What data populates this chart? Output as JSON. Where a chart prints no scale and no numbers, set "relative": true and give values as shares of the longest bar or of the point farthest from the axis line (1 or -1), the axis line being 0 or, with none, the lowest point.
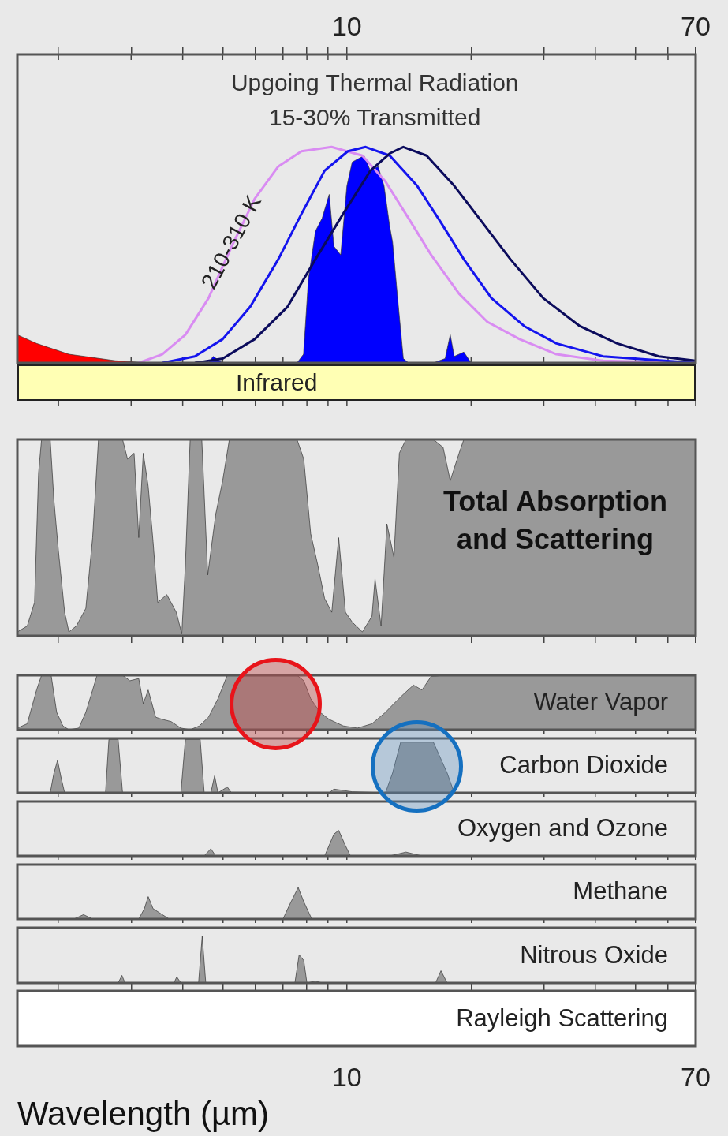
{
  "chart_data": [
    {
      "type": "line",
      "title": "Upgoing Thermal Radiation",
      "subtitle": "15-30% Transmitted",
      "relative": true,
      "log": "x",
      "tick_labels": "x",
      "xlim": [
        1.59,
        70
      ],
      "xticks": [
        {
          "value": 2,
          "label": null
        },
        {
          "value": 3,
          "label": null
        },
        {
          "value": 4,
          "label": null
        },
        {
          "value": 5,
          "label": null
        },
        {
          "value": 6,
          "label": null
        },
        {
          "value": 7,
          "label": null
        },
        {
          "value": 8,
          "label": null
        },
        {
          "value": 9,
          "label": null
        },
        10,
        {
          "value": 20,
          "label": null
        },
        {
          "value": 30,
          "label": null
        },
        {
          "value": 40,
          "label": null
        },
        {
          "value": 50,
          "label": null
        },
        {
          "value": 60,
          "label": null
        },
        70
      ],
      "annotations": [
        "210-310 K",
        "Infrared"
      ],
      "series": [
        {
          "type": "area",
          "color": "#ff0000",
          "x": [
            1.59,
            1.77,
            2.12,
            2.75,
            3.3
          ],
          "values": [
            0.13,
            0.09,
            0.04,
            0.01,
            0
          ]
        },
        {
          "type": "area",
          "color": "#0000ff",
          "x": [
            3.13,
            4.62,
            4.74,
            5.0,
            7.57,
            7.85,
            8.07,
            8.39,
            8.71,
            9.06,
            9.3,
            9.66,
            10,
            10.3,
            11.0,
            11.4,
            11.9,
            12.3,
            12.7,
            12.9,
            13.3,
            13.7,
            14.1,
            16.2,
            17.3,
            17.8,
            18.2,
            19.2,
            20.0,
            70
          ],
          "values": [
            0,
            0,
            0.03,
            0,
            0,
            0.04,
            0.39,
            0.61,
            0.67,
            0.78,
            0.54,
            0.5,
            0.82,
            0.93,
            0.96,
            0.89,
            0.91,
            0.82,
            0.63,
            0.56,
            0.28,
            0.02,
            0,
            0,
            0.02,
            0.13,
            0.03,
            0.05,
            0,
            0
          ]
        },
        {
          "type": "line",
          "color": "#d98cf2",
          "x": [
            3.13,
            3.57,
            4.06,
            4.62,
            5.26,
            5.98,
            6.82,
            7.76,
            9.18,
            10.9,
            12.4,
            14.1,
            16.0,
            18.7,
            21.9,
            26.2,
            32.2,
            41.8,
            70
          ],
          "values": [
            0,
            0.04,
            0.13,
            0.3,
            0.54,
            0.76,
            0.91,
            0.98,
            1,
            0.96,
            0.84,
            0.67,
            0.5,
            0.32,
            0.19,
            0.11,
            0.04,
            0.01,
            0
          ]
        },
        {
          "type": "line",
          "color": "#1414ee",
          "x": [
            3.57,
            4.28,
            5.0,
            5.83,
            6.82,
            7.76,
            8.83,
            10.05,
            11.1,
            12.7,
            14.8,
            16.9,
            19.2,
            22.4,
            26.9,
            32.2,
            41.8,
            70
          ],
          "values": [
            0,
            0.03,
            0.11,
            0.26,
            0.48,
            0.69,
            0.89,
            0.98,
            1,
            0.96,
            0.82,
            0.65,
            0.48,
            0.3,
            0.17,
            0.09,
            0.03,
            0
          ]
        },
        {
          "type": "line",
          "color": "#0b0b5c",
          "x": [
            4.28,
            5.0,
            5.98,
            7.18,
            8.39,
            9.79,
            11.4,
            12.7,
            13.7,
            15.6,
            18.2,
            21.3,
            24.9,
            29.9,
            36.7,
            45.2,
            57.0,
            70
          ],
          "values": [
            0,
            0.02,
            0.11,
            0.26,
            0.48,
            0.69,
            0.89,
            0.97,
            1,
            0.96,
            0.82,
            0.65,
            0.48,
            0.3,
            0.17,
            0.09,
            0.03,
            0.01
          ]
        }
      ]
    },
    {
      "type": "area",
      "title": "Total Absorption and Scattering",
      "relative": true,
      "log": "x",
      "tick_labels": false,
      "xlim": [
        1.59,
        70
      ],
      "xticks": [
        2,
        3,
        4,
        5,
        6,
        7,
        8,
        9,
        10,
        20,
        30,
        40,
        50,
        60,
        70
      ],
      "color": "#999999",
      "x": [
        1.59,
        1.68,
        1.75,
        1.79,
        1.82,
        1.91,
        1.95,
        2.0,
        2.07,
        2.12,
        2.21,
        2.33,
        2.42,
        2.5,
        2.86,
        2.94,
        3.05,
        3.13,
        3.21,
        3.3,
        3.39,
        3.48,
        3.66,
        3.86,
        3.98,
        4.06,
        4.17,
        4.45,
        4.6,
        4.81,
        5.0,
        5.19,
        7.57,
        7.86,
        8.17,
        8.5,
        8.83,
        9.19,
        9.55,
        9.92,
        10.3,
        10.9,
        11.5,
        11.7,
        12.1,
        12.5,
        13.0,
        13.4,
        13.9,
        16.2,
        17.1,
        17.8,
        18.7,
        19.2,
        70
      ],
      "values": [
        0.02,
        0.05,
        0.17,
        0.83,
        1,
        1,
        0.69,
        0.43,
        0.12,
        0.02,
        0.05,
        0.14,
        0.5,
        1,
        1,
        0.9,
        0.93,
        0.5,
        0.93,
        0.76,
        0.48,
        0.17,
        0.21,
        0.12,
        0.01,
        0.36,
        1,
        1,
        0.31,
        0.62,
        0.79,
        1,
        1,
        0.9,
        0.52,
        0.36,
        0.19,
        0.12,
        0.5,
        0.12,
        0.07,
        0.02,
        0.1,
        0.29,
        0.05,
        0.57,
        0.4,
        0.93,
        1,
        1,
        0.96,
        0.79,
        0.93,
        1,
        1
      ]
    },
    {
      "type": "area",
      "title": "Water Vapor",
      "relative": true,
      "log": "x",
      "tick_labels": false,
      "xlim": [
        1.59,
        70
      ],
      "xticks": [
        2,
        3,
        4,
        5,
        6,
        7,
        8,
        9,
        10,
        20,
        30,
        40,
        50,
        60,
        70
      ],
      "color": "#999999",
      "x": [
        1.59,
        1.68,
        1.77,
        1.82,
        1.92,
        1.98,
        2.05,
        2.12,
        2.24,
        2.33,
        2.42,
        2.48,
        2.86,
        2.98,
        3.13,
        3.21,
        3.3,
        3.44,
        3.57,
        3.75,
        3.96,
        4.17,
        4.39,
        4.62,
        4.87,
        5.13,
        7.57,
        7.86,
        8.17,
        8.61,
        9.06,
        9.8,
        10.6,
        11.5,
        12.4,
        13.0,
        13.7,
        14.5,
        15.2,
        16.0,
        17.3,
        70
      ],
      "values": [
        0.03,
        0.11,
        0.73,
        1,
        1,
        0.32,
        0.07,
        0,
        0.03,
        0.32,
        0.73,
        1,
        1,
        0.9,
        0.94,
        0.48,
        0.73,
        0.23,
        0.19,
        0.15,
        0.03,
        0,
        0.07,
        0.23,
        0.57,
        1,
        1,
        0.9,
        0.57,
        0.32,
        0.19,
        0.07,
        0.03,
        0.11,
        0.32,
        0.48,
        0.65,
        0.82,
        0.73,
        0.98,
        1,
        1
      ]
    },
    {
      "type": "area",
      "title": "Carbon Dioxide",
      "relative": true,
      "log": "x",
      "tick_labels": false,
      "xlim": [
        1.59,
        70
      ],
      "xticks": [
        2,
        3,
        4,
        5,
        6,
        7,
        8,
        9,
        10,
        20,
        30,
        40,
        50,
        60,
        70
      ],
      "color": "#999999",
      "x": [
        1.59,
        1.91,
        1.95,
        1.99,
        2.03,
        2.07,
        2.6,
        2.65,
        2.79,
        2.86,
        3.96,
        4.06,
        4.41,
        4.51,
        4.68,
        4.78,
        4.87,
        5.13,
        5.25,
        9.06,
        9.3,
        10.3,
        12.4,
        12.9,
        13.5,
        16.2,
        17.5,
        18.2,
        70
      ],
      "values": [
        0,
        0,
        0.37,
        0.61,
        0.28,
        0,
        0,
        1,
        1,
        0,
        0,
        1,
        1,
        0,
        0,
        0.32,
        0,
        0.11,
        0,
        0,
        0.07,
        0.02,
        0,
        0.37,
        0.95,
        0.95,
        0.37,
        0,
        0
      ]
    },
    {
      "type": "area",
      "title": "Oxygen and Ozone",
      "relative": true,
      "log": "x",
      "tick_labels": false,
      "xlim": [
        1.59,
        70
      ],
      "xticks": [
        2,
        3,
        4,
        5,
        6,
        7,
        8,
        9,
        10,
        20,
        30,
        40,
        50,
        60,
        70
      ],
      "color": "#999999",
      "x": [
        1.59,
        4.51,
        4.68,
        4.81,
        8.83,
        9.3,
        9.55,
        9.92,
        10.2,
        12.7,
        13.9,
        15.2,
        70
      ],
      "values": [
        0,
        0,
        0.28,
        0,
        0,
        0.85,
        1,
        0.4,
        0,
        0,
        0.15,
        0,
        0
      ]
    },
    {
      "type": "area",
      "title": "Methane",
      "relative": true,
      "log": "x",
      "tick_labels": false,
      "xlim": [
        1.59,
        70
      ],
      "xticks": [
        2,
        3,
        4,
        5,
        6,
        7,
        8,
        9,
        10,
        20,
        30,
        40,
        50,
        60,
        70
      ],
      "color": "#999999",
      "x": [
        1.59,
        2.18,
        2.3,
        2.42,
        3.13,
        3.23,
        3.3,
        3.39,
        3.71,
        7.0,
        7.28,
        7.62,
        7.86,
        8.22,
        70
      ],
      "values": [
        0,
        0,
        0.14,
        0,
        0,
        0.33,
        0.71,
        0.33,
        0,
        0,
        0.48,
        1,
        0.55,
        0,
        0
      ]
    },
    {
      "type": "area",
      "title": "Nitrous Oxide",
      "xlabel": "Wavelength (µm)",
      "relative": true,
      "log": "x",
      "tick_labels": "x",
      "xlim": [
        1.59,
        70
      ],
      "xticks": [
        {
          "value": 2,
          "label": null
        },
        {
          "value": 3,
          "label": null
        },
        {
          "value": 4,
          "label": null
        },
        {
          "value": 5,
          "label": null
        },
        {
          "value": 6,
          "label": null
        },
        {
          "value": 7,
          "label": null
        },
        {
          "value": 8,
          "label": null
        },
        {
          "value": 9,
          "label": null
        },
        10,
        {
          "value": 20,
          "label": null
        },
        {
          "value": 30,
          "label": null
        },
        {
          "value": 40,
          "label": null
        },
        {
          "value": 50,
          "label": null
        },
        {
          "value": 60,
          "label": null
        },
        70
      ],
      "color": "#999999",
      "x": [
        1.59,
        2.79,
        2.85,
        2.9,
        3.81,
        3.87,
        3.96,
        4.37,
        4.46,
        4.55,
        7.48,
        7.66,
        7.86,
        8.0,
        8.39,
        8.71,
        16.4,
        16.9,
        17.5,
        70
      ],
      "values": [
        0,
        0,
        0.16,
        0,
        0,
        0.13,
        0,
        0,
        1,
        0,
        0,
        0.6,
        0.48,
        0,
        0.04,
        0,
        0,
        0.26,
        0,
        0
      ]
    },
    {
      "type": "other",
      "title": "Rayleigh Scattering"
    }
  ]
}
